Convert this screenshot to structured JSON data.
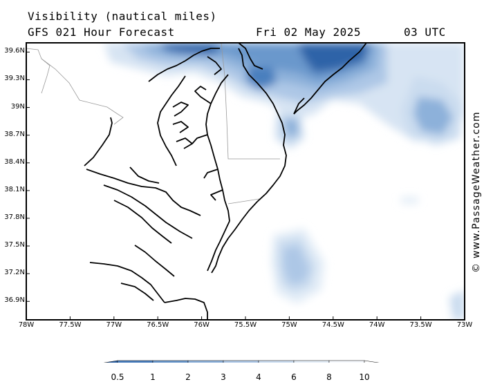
{
  "title": {
    "line1": "Visibility (nautical miles)",
    "line2": "GFS 021 Hour Forecast",
    "date": "Fri 02 May 2025",
    "time": "03 UTC"
  },
  "credit": "© www.PassageWeather.com",
  "axes": {
    "lat_labels": [
      "39.6N",
      "39.3N",
      "39N",
      "38.7N",
      "38.4N",
      "38.1N",
      "37.8N",
      "37.5N",
      "37.2N",
      "36.9N"
    ],
    "lon_labels": [
      "78W",
      "77.5W",
      "77W",
      "76.5W",
      "76W",
      "75.5W",
      "75W",
      "74.5W",
      "74W",
      "73.5W",
      "73W"
    ],
    "lat_range": [
      36.7,
      39.7
    ],
    "lon_range": [
      -78,
      -73
    ]
  },
  "legend": {
    "labels": [
      "0.5",
      "1",
      "2",
      "3",
      "4",
      "6",
      "8",
      "10"
    ],
    "colors": [
      "#2f64a8",
      "#4a7fbe",
      "#6a98cc",
      "#8db1da",
      "#adc7e6",
      "#cadcef",
      "#e3edf7",
      "#f6f9fd"
    ]
  }
}
